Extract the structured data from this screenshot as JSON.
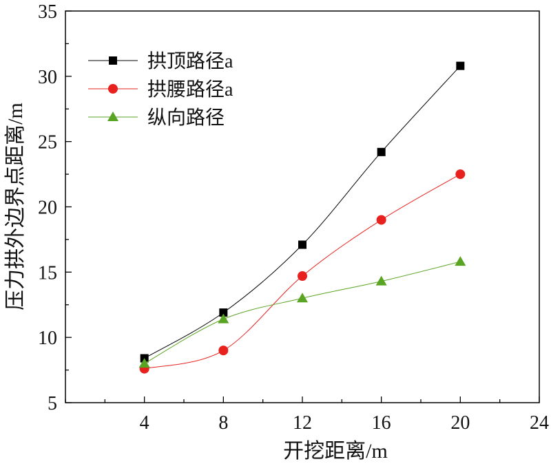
{
  "chart_data": {
    "type": "line",
    "xlabel": "开挖距离/m",
    "ylabel": "压力拱外边界点距离/m",
    "xlim": [
      0,
      24
    ],
    "ylim": [
      5,
      35
    ],
    "xticks": [
      4,
      8,
      12,
      16,
      20,
      24
    ],
    "yticks": [
      5,
      10,
      15,
      20,
      25,
      30,
      35
    ],
    "grid": false,
    "legend_position": "top-left",
    "series": [
      {
        "name": "拱顶路径a",
        "marker": "square",
        "color": "#000000",
        "x": [
          4,
          8,
          12,
          16,
          20
        ],
        "values": [
          8.4,
          11.9,
          17.1,
          24.2,
          30.8
        ]
      },
      {
        "name": "拱腰路径a",
        "marker": "circle",
        "color": "#e8201e",
        "x": [
          4,
          8,
          12,
          16,
          20
        ],
        "values": [
          7.6,
          9.0,
          14.7,
          19.0,
          22.5
        ]
      },
      {
        "name": "纵向路径",
        "marker": "triangle",
        "color": "#5aa423",
        "x": [
          4,
          8,
          12,
          16,
          20
        ],
        "values": [
          8.0,
          11.4,
          13.0,
          14.3,
          15.8
        ]
      }
    ]
  }
}
